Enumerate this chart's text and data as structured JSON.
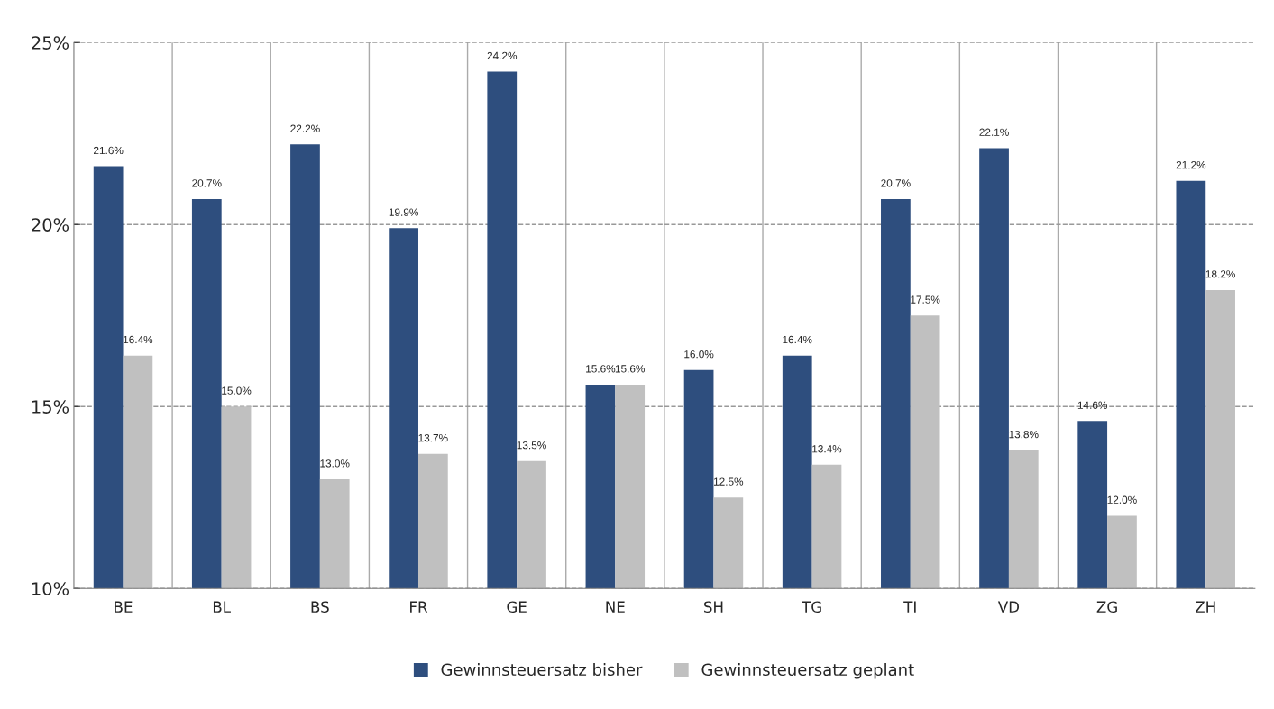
{
  "chart_data": {
    "type": "bar",
    "categories": [
      "BE",
      "BL",
      "BS",
      "FR",
      "GE",
      "NE",
      "SH",
      "TG",
      "TI",
      "VD",
      "ZG",
      "ZH"
    ],
    "series": [
      {
        "name": "Gewinnsteuersatz bisher",
        "color": "#2e4e7e",
        "values": [
          21.6,
          20.7,
          22.2,
          19.9,
          24.2,
          15.6,
          16.0,
          16.4,
          20.7,
          22.1,
          14.6,
          21.2
        ],
        "value_labels": [
          "21.6%",
          "20.7%",
          "22.2%",
          "19.9%",
          "24.2%",
          "15.6%",
          "16.0%",
          "16.4%",
          "20.7%",
          "22.1%",
          "14.6%",
          "21.2%"
        ]
      },
      {
        "name": "Gewinnsteuersatz geplant",
        "color": "#c0c0c0",
        "values": [
          16.4,
          15.0,
          13.0,
          13.7,
          13.5,
          15.6,
          12.5,
          13.4,
          17.5,
          13.8,
          12.0,
          18.2
        ],
        "value_labels": [
          "16.4%",
          "15.0%",
          "13.0%",
          "13.7%",
          "13.5%",
          "15.6%",
          "12.5%",
          "13.4%",
          "17.5%",
          "13.8%",
          "12.0%",
          "18.2%"
        ]
      }
    ],
    "ylim": [
      10,
      25
    ],
    "yticks": [
      {
        "value": 10,
        "label": "10%"
      },
      {
        "value": 15,
        "label": "15%"
      },
      {
        "value": 20,
        "label": "20%"
      },
      {
        "value": 25,
        "label": "25%"
      }
    ],
    "grid": true,
    "legend": "bottom"
  }
}
